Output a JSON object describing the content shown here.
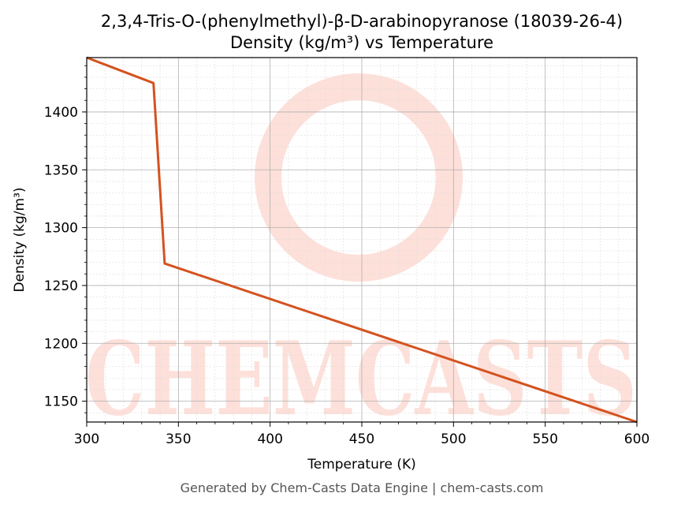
{
  "chart_data": {
    "type": "line",
    "title": "2,3,4-Tris-O-(phenylmethyl)-β-D-arabinopyranose (18039-26-4)",
    "subtitle": "Density (kg/m³) vs Temperature",
    "xlabel": "Temperature (K)",
    "ylabel": "Density (kg/m³)",
    "xlim": [
      300,
      600
    ],
    "ylim": [
      1132,
      1447
    ],
    "xticks": [
      300,
      350,
      400,
      450,
      500,
      550,
      600
    ],
    "yticks": [
      1150,
      1200,
      1250,
      1300,
      1350,
      1400
    ],
    "grid": true,
    "line_color": "#d4521f",
    "series": [
      {
        "x": [
          300,
          336.4,
          342.5,
          600
        ],
        "y": [
          1447,
          1425,
          1269,
          1132
        ]
      }
    ]
  },
  "watermark": {
    "text": "CHEMCASTS",
    "color": "#fde0d9"
  },
  "footer": "Generated by Chem-Casts Data Engine | chem-casts.com"
}
